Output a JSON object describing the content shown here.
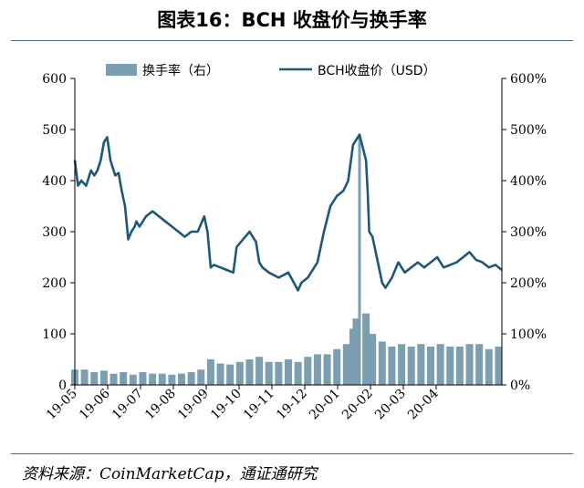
{
  "page": {
    "title": "图表16：BCH 收盘价与换手率",
    "source": "资料来源：CoinMarketCap，通证通研究"
  },
  "chart_data": {
    "type": "line",
    "x_categories": [
      "19-05",
      "19-06",
      "19-07",
      "19-08",
      "19-09",
      "19-10",
      "19-11",
      "19-12",
      "20-01",
      "20-02",
      "20-03",
      "20-04"
    ],
    "y_left": {
      "ticks": [
        "0",
        "100",
        "200",
        "300",
        "400",
        "500",
        "600"
      ],
      "ylim": [
        0,
        600
      ]
    },
    "y_right": {
      "ticks": [
        "0%",
        "100%",
        "200%",
        "300%",
        "400%",
        "500%",
        "600%"
      ],
      "ylim": [
        0,
        600
      ]
    },
    "grid": false,
    "legend_position": "top",
    "colors": {
      "line": "#1e5878",
      "bar": "#7b9fb0"
    },
    "series": [
      {
        "name": "换手率（右）",
        "type": "bar",
        "axis": "right",
        "unit": "%",
        "x": [
          0,
          0.3,
          0.6,
          0.9,
          1.2,
          1.5,
          1.8,
          2.1,
          2.4,
          2.7,
          3.0,
          3.3,
          3.6,
          3.9,
          4.2,
          4.5,
          4.8,
          5.1,
          5.4,
          5.7,
          6.0,
          6.3,
          6.6,
          6.9,
          7.2,
          7.5,
          7.8,
          8.1,
          8.4,
          8.6,
          8.7,
          8.8,
          9.0,
          9.2,
          9.5,
          9.8,
          10.1,
          10.4,
          10.7,
          11.0,
          11.3,
          11.6,
          11.9,
          12.2,
          12.5,
          12.8,
          13.1
        ],
        "values": [
          30,
          30,
          25,
          28,
          22,
          25,
          20,
          25,
          22,
          22,
          20,
          22,
          25,
          30,
          50,
          42,
          40,
          45,
          50,
          55,
          45,
          45,
          50,
          45,
          55,
          60,
          60,
          70,
          80,
          110,
          130,
          490,
          140,
          100,
          85,
          75,
          80,
          75,
          80,
          75,
          80,
          75,
          75,
          80,
          80,
          70,
          75
        ]
      },
      {
        "name": "BCH收盘价（USD）",
        "type": "line",
        "axis": "left",
        "unit": "USD",
        "x": [
          0,
          0.1,
          0.2,
          0.35,
          0.5,
          0.6,
          0.7,
          0.8,
          0.9,
          1.0,
          1.1,
          1.2,
          1.25,
          1.35,
          1.45,
          1.55,
          1.65,
          1.75,
          1.85,
          1.9,
          2.0,
          2.1,
          2.2,
          2.4,
          2.6,
          2.8,
          3.0,
          3.2,
          3.4,
          3.6,
          3.8,
          4.0,
          4.1,
          4.2,
          4.3,
          4.5,
          4.7,
          4.9,
          5.0,
          5.2,
          5.4,
          5.6,
          5.7,
          5.8,
          6.0,
          6.3,
          6.6,
          6.9,
          7.0,
          7.2,
          7.5,
          7.7,
          7.9,
          8.1,
          8.3,
          8.45,
          8.6,
          8.8,
          9.0,
          9.05,
          9.1,
          9.2,
          9.4,
          9.5,
          9.6,
          9.8,
          10.0,
          10.2,
          10.4,
          10.6,
          10.8,
          11.0,
          11.2,
          11.4,
          11.6,
          11.8,
          12.0,
          12.2,
          12.4,
          12.6,
          12.8,
          13.0,
          13.2
        ],
        "values": [
          440,
          390,
          400,
          390,
          420,
          410,
          420,
          440,
          475,
          485,
          440,
          420,
          410,
          415,
          380,
          350,
          285,
          300,
          310,
          320,
          310,
          320,
          330,
          340,
          330,
          320,
          310,
          300,
          290,
          300,
          300,
          330,
          300,
          230,
          235,
          230,
          225,
          220,
          270,
          285,
          300,
          280,
          240,
          230,
          220,
          210,
          220,
          185,
          200,
          210,
          240,
          300,
          350,
          370,
          380,
          400,
          470,
          490,
          440,
          380,
          300,
          290,
          230,
          200,
          190,
          210,
          240,
          220,
          230,
          240,
          230,
          240,
          250,
          230,
          235,
          240,
          250,
          260,
          245,
          240,
          230,
          235,
          225
        ]
      }
    ]
  }
}
